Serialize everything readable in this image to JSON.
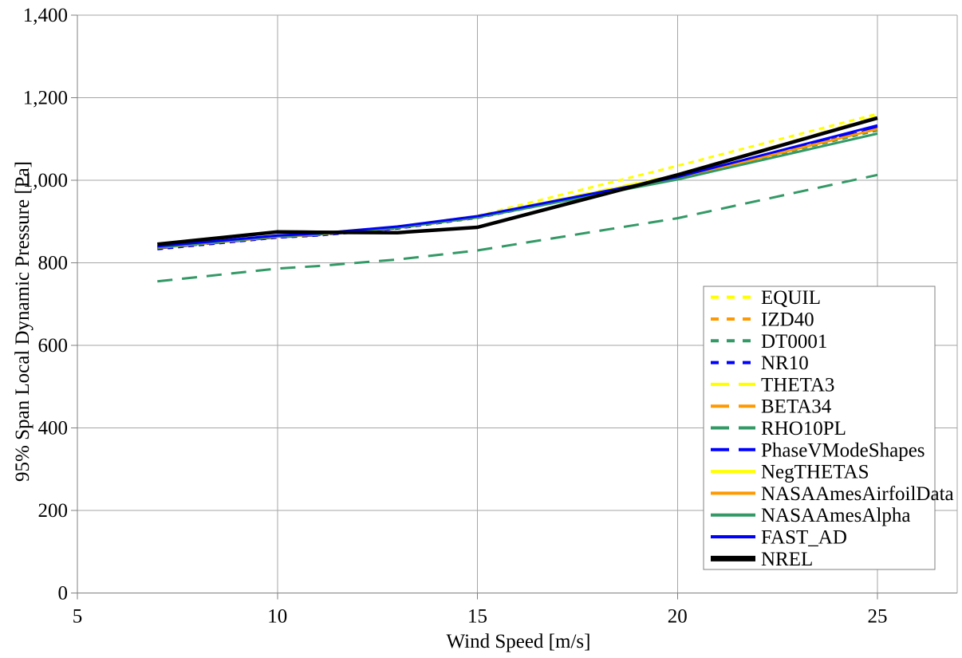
{
  "chart_data": {
    "type": "line",
    "title": "",
    "xlabel": "Wind Speed [m/s]",
    "ylabel": "95% Span Local Dynamic Pressure [Pa]",
    "xlim": [
      5,
      27
    ],
    "ylim": [
      0,
      1400
    ],
    "grid": true,
    "legend_position": "inside-right",
    "x_ticks": [
      5,
      10,
      15,
      20,
      25
    ],
    "x_tick_labels": [
      "5",
      "10",
      "15",
      "20",
      "25"
    ],
    "y_ticks": [
      0,
      200,
      400,
      600,
      800,
      1000,
      1200,
      1400
    ],
    "y_tick_labels": [
      "0",
      "200",
      "400",
      "600",
      "800",
      "1,000",
      "1,200",
      "1,400"
    ],
    "x": [
      7,
      10,
      11,
      13,
      15,
      20,
      25
    ],
    "series": [
      {
        "name": "EQUIL",
        "color": "#FFFF00",
        "style": "short-dash",
        "values": [
          838,
          866,
          871,
          888,
          914,
          1035,
          1161
        ]
      },
      {
        "name": "IZD40",
        "color": "#FF9900",
        "style": "short-dash",
        "values": [
          836,
          863,
          868,
          884,
          910,
          1006,
          1127
        ]
      },
      {
        "name": "DT0001",
        "color": "#339966",
        "style": "short-dash",
        "values": [
          837,
          864,
          869,
          885,
          911,
          1005,
          1121
        ]
      },
      {
        "name": "NR10",
        "color": "#0000FF",
        "style": "short-dash",
        "values": [
          833,
          861,
          866,
          883,
          909,
          1004,
          1126
        ]
      },
      {
        "name": "THETA3",
        "color": "#FFFF00",
        "style": "long-dash",
        "values": [
          838,
          866,
          871,
          888,
          913,
          1013,
          1155
        ]
      },
      {
        "name": "BETA34",
        "color": "#FF9900",
        "style": "long-dash",
        "values": [
          836,
          863,
          868,
          884,
          910,
          1006,
          1126
        ]
      },
      {
        "name": "RHO10PL",
        "color": "#339966",
        "style": "long-dash",
        "values": [
          755,
          786,
          792,
          808,
          830,
          908,
          1013
        ]
      },
      {
        "name": "PhaseVModeShapes",
        "color": "#0000FF",
        "style": "long-dash",
        "values": [
          835,
          862,
          867,
          884,
          911,
          1007,
          1130
        ]
      },
      {
        "name": "NegTHETAS",
        "color": "#FFFF00",
        "style": "solid",
        "values": [
          838,
          866,
          871,
          888,
          913,
          1011,
          1152
        ]
      },
      {
        "name": "NASAAmesAirfoilData",
        "color": "#FF9900",
        "style": "solid",
        "values": [
          836,
          863,
          868,
          885,
          910,
          1005,
          1124
        ]
      },
      {
        "name": "NASAAmesAlpha",
        "color": "#339966",
        "style": "solid",
        "values": [
          837,
          864,
          869,
          885,
          910,
          1002,
          1113
        ]
      },
      {
        "name": "FAST_AD",
        "color": "#0000FF",
        "style": "solid",
        "values": [
          840,
          866,
          871,
          888,
          913,
          1008,
          1133
        ]
      },
      {
        "name": "NREL",
        "color": "#000000",
        "style": "solid-thick",
        "values": [
          845,
          875,
          874,
          873,
          886,
          1013,
          1151
        ]
      }
    ],
    "colors": {
      "background": "#FFFFFF",
      "gridline": "#A6A6A6",
      "axis": "#808080",
      "legend_border": "#808080",
      "text": "#000000"
    }
  }
}
